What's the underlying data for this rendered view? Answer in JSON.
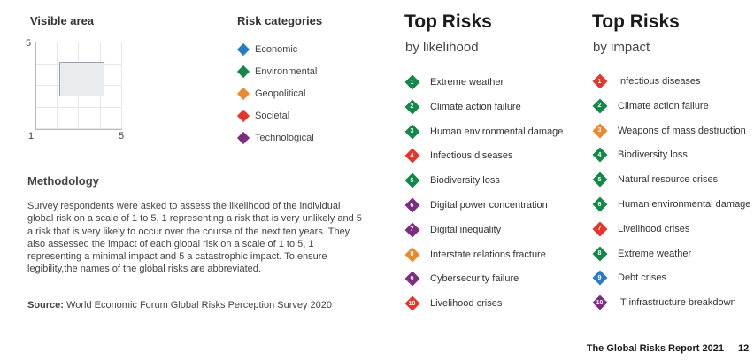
{
  "visible_area": {
    "title": "Visible area",
    "y_max": "5",
    "x_min": "1",
    "x_max": "5"
  },
  "categories": {
    "title": "Risk categories",
    "colors": {
      "Economic": "#1f77b4",
      "Environmental": "#1a8a4a",
      "Geopolitical": "#e8862a",
      "Societal": "#e0352f",
      "Technological": "#7b2a82"
    },
    "items": [
      {
        "label": "Economic",
        "color": "#2b7bbf"
      },
      {
        "label": "Environmental",
        "color": "#14874a"
      },
      {
        "label": "Geopolitical",
        "color": "#e88a2e"
      },
      {
        "label": "Societal",
        "color": "#e3362d"
      },
      {
        "label": "Technological",
        "color": "#7e2b83"
      }
    ]
  },
  "methodology": {
    "title": "Methodology",
    "text": "Survey respondents were asked to assess the likelihood of the individual global risk on a scale of 1 to 5, 1 representing a risk that is very unlikely and 5 a risk that is very likely to occur over the course of the next ten years. They also assessed the impact of each global risk on a scale of 1 to 5, 1 representing a minimal impact and 5 a catastrophic impact. To ensure legibility,the names of the global risks are abbreviated.",
    "source_label": "Source:",
    "source_text": "World Economic Forum Global Risks Perception Survey 2020"
  },
  "likelihood": {
    "title": "Top Risks",
    "subtitle": "by likelihood",
    "items": [
      {
        "rank": "1",
        "label": "Extreme weather",
        "color": "#14874a"
      },
      {
        "rank": "2",
        "label": "Climate action failure",
        "color": "#14874a"
      },
      {
        "rank": "3",
        "label": "Human environmental damage",
        "color": "#14874a"
      },
      {
        "rank": "4",
        "label": "Infectious diseases",
        "color": "#e3362d"
      },
      {
        "rank": "5",
        "label": "Biodiversity loss",
        "color": "#14874a"
      },
      {
        "rank": "6",
        "label": "Digital power concentration",
        "color": "#7e2b83"
      },
      {
        "rank": "7",
        "label": "Digital inequality",
        "color": "#7e2b83"
      },
      {
        "rank": "8",
        "label": "Interstate relations fracture",
        "color": "#e88a2e"
      },
      {
        "rank": "9",
        "label": "Cybersecurity failure",
        "color": "#7e2b83"
      },
      {
        "rank": "10",
        "label": "Livelihood crises",
        "color": "#e3362d"
      }
    ]
  },
  "impact": {
    "title": "Top Risks",
    "subtitle": "by impact",
    "items": [
      {
        "rank": "1",
        "label": "Infectious diseases",
        "color": "#e3362d"
      },
      {
        "rank": "2",
        "label": "Climate action failure",
        "color": "#14874a"
      },
      {
        "rank": "3",
        "label": "Weapons of mass destruction",
        "color": "#e88a2e"
      },
      {
        "rank": "4",
        "label": "Biodiversity loss",
        "color": "#14874a"
      },
      {
        "rank": "5",
        "label": "Natural resource crises",
        "color": "#14874a"
      },
      {
        "rank": "6",
        "label": "Human environmental damage",
        "color": "#14874a"
      },
      {
        "rank": "7",
        "label": "Livelihood crises",
        "color": "#e3362d"
      },
      {
        "rank": "8",
        "label": "Extreme weather",
        "color": "#14874a"
      },
      {
        "rank": "9",
        "label": "Debt crises",
        "color": "#2b7bbf"
      },
      {
        "rank": "10",
        "label": "IT infrastructure breakdown",
        "color": "#7e2b83"
      }
    ]
  },
  "footer": {
    "report": "The Global Risks Report 2021",
    "page": "12"
  }
}
